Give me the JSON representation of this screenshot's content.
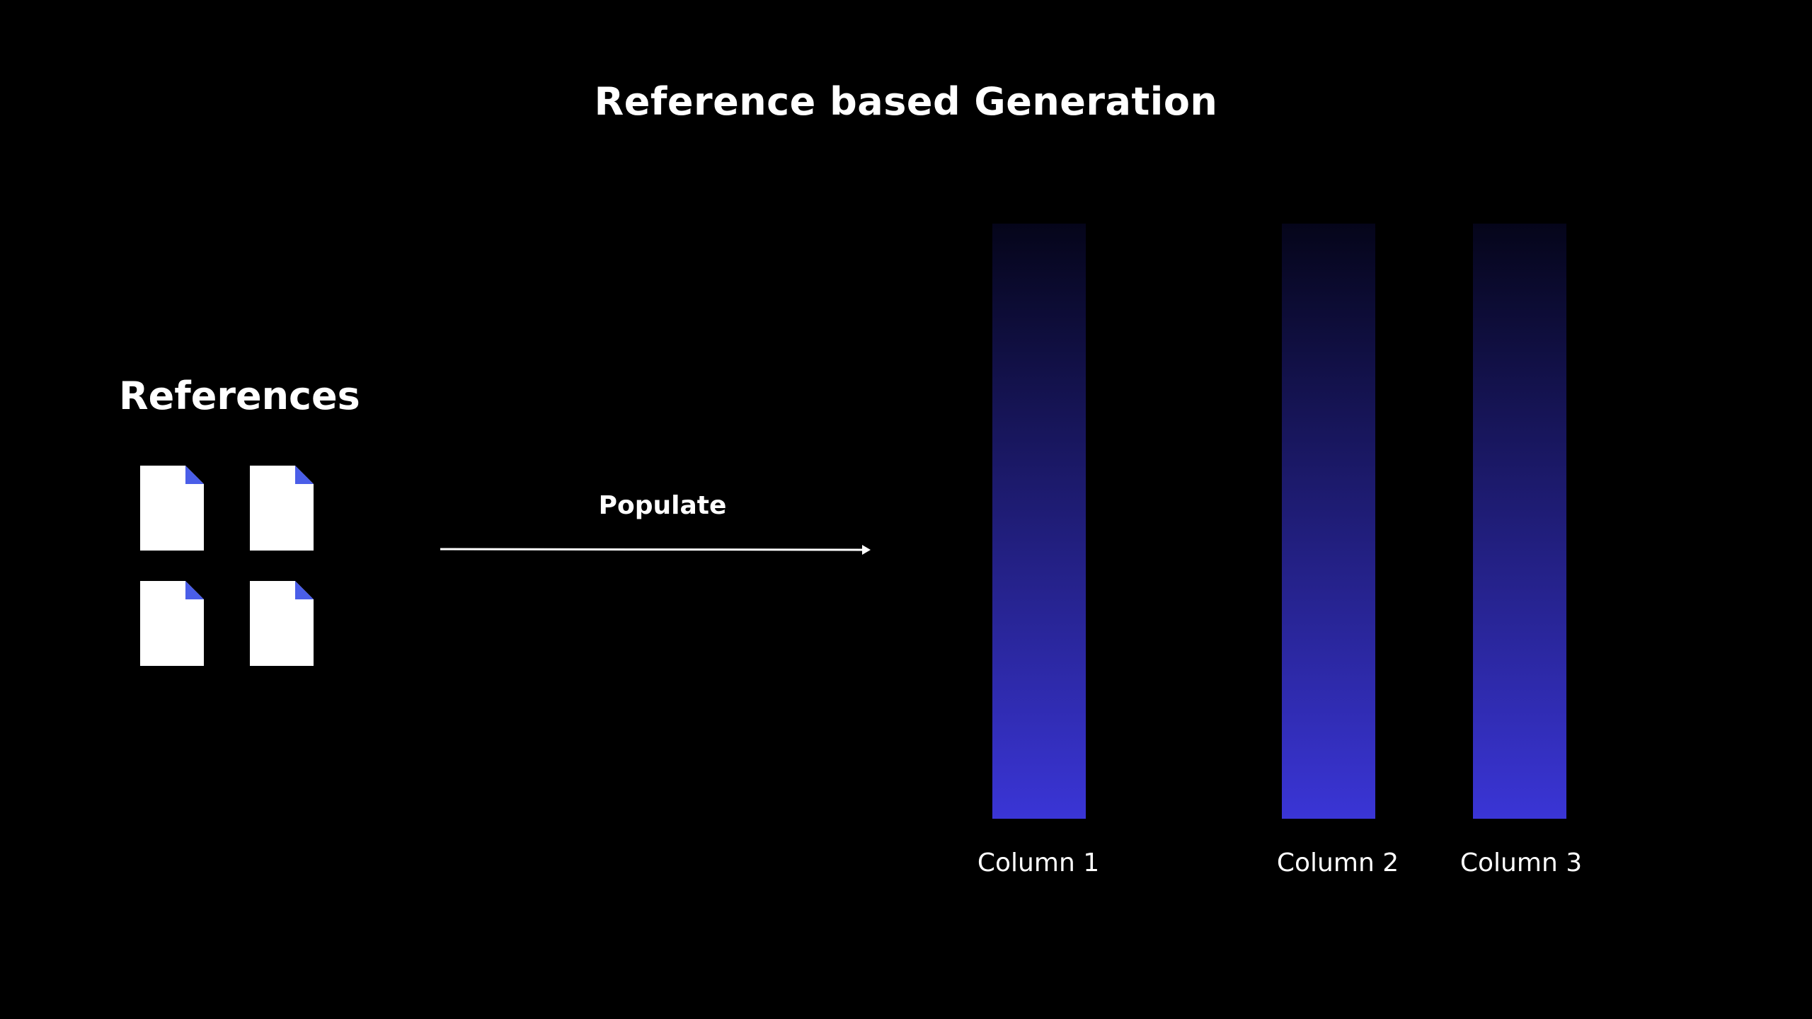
{
  "title": "Reference based Generation",
  "references": {
    "heading": "References",
    "documents": [
      {
        "icon": "document-icon"
      },
      {
        "icon": "document-icon"
      },
      {
        "icon": "document-icon"
      },
      {
        "icon": "document-icon"
      }
    ]
  },
  "arrow": {
    "label": "Populate"
  },
  "columns": [
    {
      "label": "Column 1"
    },
    {
      "label": "Column 2"
    },
    {
      "label": "Column 3"
    }
  ],
  "colors": {
    "background": "#000000",
    "text": "#ffffff",
    "document": "#ffffff",
    "document_fold": "#4a5ee8",
    "column_top": "#05051a",
    "column_bottom": "#3a35d6"
  }
}
